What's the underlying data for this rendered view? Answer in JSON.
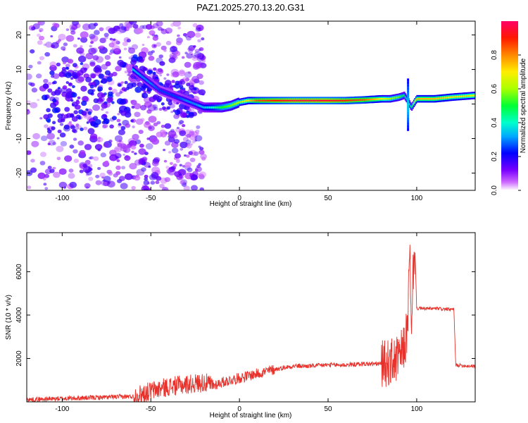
{
  "title": "PAZ1.2025.270.13.20.G31",
  "chart_data": [
    {
      "type": "heatmap",
      "name": "spectrogram",
      "xlabel": "Height of straight line (km)",
      "ylabel": "Frequency (Hz)",
      "xlim": [
        -120,
        133
      ],
      "ylim": [
        -25,
        24
      ],
      "xticks": [
        -100,
        -50,
        0,
        50,
        100
      ],
      "yticks": [
        -20,
        -10,
        0,
        10,
        20
      ],
      "colorbar": {
        "label": "Normalized spectral amplitude",
        "range": [
          0,
          1
        ],
        "ticks": [
          0.0,
          0.2,
          0.4,
          0.6,
          0.8
        ],
        "tick_labels": [
          "0.0",
          "0.2",
          "0.4",
          "0.6",
          "0.8"
        ],
        "colors": [
          "#ffffff",
          "#cc66ff",
          "#6600ff",
          "#0000ff",
          "#00ccff",
          "#00ff66",
          "#ccff00",
          "#ffcc00",
          "#ff6600",
          "#ff0000",
          "#ff0066"
        ]
      },
      "ridge": {
        "x": [
          -60,
          -55,
          -50,
          -45,
          -40,
          -35,
          -30,
          -25,
          -20,
          -15,
          -10,
          -5,
          0,
          5,
          10,
          20,
          30,
          40,
          50,
          60,
          70,
          80,
          85,
          90,
          93,
          95,
          97,
          100,
          110,
          120,
          133
        ],
        "freq": [
          10,
          8,
          6,
          4,
          3,
          2,
          1,
          0,
          -1,
          -1,
          -1,
          -0.5,
          0.5,
          1,
          1,
          1,
          1,
          1,
          1,
          1,
          1.2,
          1.5,
          1.5,
          2,
          2.5,
          1,
          -1,
          1.5,
          1.5,
          2,
          2.5
        ],
        "amp": [
          0.35,
          0.3,
          0.3,
          0.25,
          0.25,
          0.25,
          0.3,
          0.3,
          0.35,
          0.4,
          0.5,
          0.55,
          0.6,
          0.7,
          0.85,
          0.9,
          0.95,
          0.95,
          0.95,
          0.9,
          0.85,
          0.7,
          0.6,
          0.55,
          0.45,
          0.4,
          0.45,
          0.75,
          0.75,
          0.7,
          0.65
        ]
      }
    },
    {
      "type": "line",
      "name": "snr",
      "xlabel": "Height of straight line (km)",
      "ylabel": "SNR (10 * v/v)",
      "xlim": [
        -120,
        133
      ],
      "ylim": [
        0,
        7800
      ],
      "xticks": [
        -100,
        -50,
        0,
        50,
        100
      ],
      "yticks": [
        2000,
        4000,
        6000
      ],
      "color": "#e8312a",
      "x": [
        -120,
        -100,
        -80,
        -60,
        -50,
        -40,
        -30,
        -20,
        -15,
        -10,
        0,
        10,
        20,
        30,
        40,
        50,
        60,
        70,
        80,
        85,
        90,
        93,
        95,
        96,
        97,
        98,
        99,
        100,
        110,
        121,
        122,
        130,
        133
      ],
      "y": [
        100,
        150,
        200,
        250,
        500,
        700,
        800,
        900,
        750,
        900,
        1100,
        1300,
        1500,
        1650,
        1650,
        1700,
        1700,
        1750,
        1750,
        1800,
        2000,
        2500,
        3500,
        7500,
        2500,
        6000,
        7000,
        4300,
        4300,
        4250,
        1700,
        1650,
        1650
      ]
    }
  ]
}
